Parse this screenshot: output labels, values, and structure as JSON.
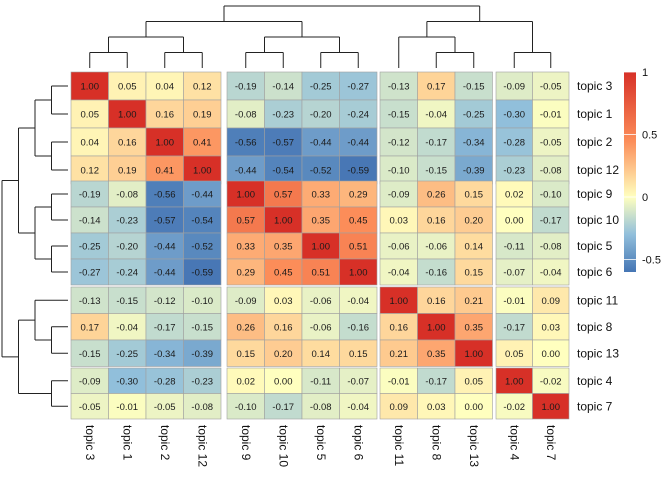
{
  "chart_data": {
    "type": "heatmap",
    "title": "",
    "row_labels": [
      "topic 3",
      "topic 1",
      "topic 2",
      "topic 12",
      "topic 9",
      "topic 10",
      "topic 5",
      "topic 6",
      "topic 11",
      "topic 8",
      "topic 13",
      "topic 4",
      "topic 7"
    ],
    "col_labels": [
      "topic 3",
      "topic 1",
      "topic 2",
      "topic 12",
      "topic 9",
      "topic 10",
      "topic 5",
      "topic 6",
      "topic 11",
      "topic 8",
      "topic 13",
      "topic 4",
      "topic 7"
    ],
    "row_groups": [
      4,
      4,
      3,
      2
    ],
    "col_groups": [
      4,
      4,
      3,
      2
    ],
    "values": [
      [
        1.0,
        0.05,
        0.04,
        0.12,
        -0.19,
        -0.14,
        -0.25,
        -0.27,
        -0.13,
        0.17,
        -0.15,
        -0.09,
        -0.05
      ],
      [
        0.05,
        1.0,
        0.16,
        0.19,
        -0.08,
        -0.23,
        -0.2,
        -0.24,
        -0.15,
        -0.04,
        -0.25,
        -0.3,
        -0.01
      ],
      [
        0.04,
        0.16,
        1.0,
        0.41,
        -0.56,
        -0.57,
        -0.44,
        -0.44,
        -0.12,
        -0.17,
        -0.34,
        -0.28,
        -0.05
      ],
      [
        0.12,
        0.19,
        0.41,
        1.0,
        -0.44,
        -0.54,
        -0.52,
        -0.59,
        -0.1,
        -0.15,
        -0.39,
        -0.23,
        -0.08
      ],
      [
        -0.19,
        -0.08,
        -0.56,
        -0.44,
        1.0,
        0.57,
        0.33,
        0.29,
        -0.09,
        0.26,
        0.15,
        0.02,
        -0.1
      ],
      [
        -0.14,
        -0.23,
        -0.57,
        -0.54,
        0.57,
        1.0,
        0.35,
        0.45,
        0.03,
        0.16,
        0.2,
        0.0,
        -0.17
      ],
      [
        -0.25,
        -0.2,
        -0.44,
        -0.52,
        0.33,
        0.35,
        1.0,
        0.51,
        -0.06,
        -0.06,
        0.14,
        -0.11,
        -0.08
      ],
      [
        -0.27,
        -0.24,
        -0.44,
        -0.59,
        0.29,
        0.45,
        0.51,
        1.0,
        -0.04,
        -0.16,
        0.15,
        -0.07,
        -0.04
      ],
      [
        -0.13,
        -0.15,
        -0.12,
        -0.1,
        -0.09,
        0.03,
        -0.06,
        -0.04,
        1.0,
        0.16,
        0.21,
        -0.01,
        0.09
      ],
      [
        0.17,
        -0.04,
        -0.17,
        -0.15,
        0.26,
        0.16,
        -0.06,
        -0.16,
        0.16,
        1.0,
        0.35,
        -0.17,
        0.03
      ],
      [
        -0.15,
        -0.25,
        -0.34,
        -0.39,
        0.15,
        0.2,
        0.14,
        0.15,
        0.21,
        0.35,
        1.0,
        0.05,
        0.0
      ],
      [
        -0.09,
        -0.3,
        -0.28,
        -0.23,
        0.02,
        0.0,
        -0.11,
        -0.07,
        -0.01,
        -0.17,
        0.05,
        1.0,
        -0.02
      ],
      [
        -0.05,
        -0.01,
        -0.05,
        -0.08,
        -0.1,
        -0.17,
        -0.08,
        -0.04,
        0.09,
        0.03,
        0.0,
        -0.02,
        1.0
      ]
    ],
    "color_scale": {
      "range": [
        -0.6,
        1.0
      ],
      "stops": [
        {
          "value": -0.6,
          "color": "#4575b4"
        },
        {
          "value": -0.3,
          "color": "#91bfdb"
        },
        {
          "value": 0.0,
          "color": "#ffffbf"
        },
        {
          "value": 0.45,
          "color": "#fc8d59"
        },
        {
          "value": 1.0,
          "color": "#d73027"
        }
      ],
      "ticks": [
        {
          "value": 1.0,
          "label": "1"
        },
        {
          "value": 0.5,
          "label": "0.5"
        },
        {
          "value": 0.0,
          "label": "0"
        },
        {
          "value": -0.5,
          "label": "-0.5"
        }
      ]
    },
    "row_dendrogram": "((((topic 3,topic 1),(topic 2,topic 12)),((topic 9,topic 10),(topic 5,topic 6))),((topic 11,(topic 8,topic 13)),(topic 4,topic 7)))",
    "col_dendrogram": "((((topic 3,topic 1),(topic 2,topic 12)),((topic 9,topic 10),(topic 5,topic 6))),((topic 11,(topic 8,topic 13)),(topic 4,topic 7)))",
    "legend_position": "right",
    "grid": true
  },
  "colors": {
    "cell_border": "#a0a0a0",
    "dendrogram": "#222222",
    "text": "#111111"
  }
}
